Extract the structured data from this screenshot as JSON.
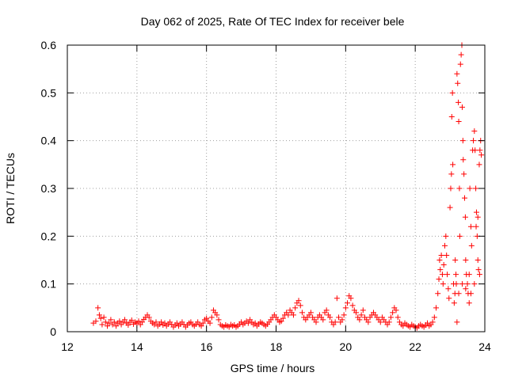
{
  "chart_data": {
    "type": "scatter",
    "title": "Day 062 of 2025, Rate Of TEC Index for receiver bele",
    "xlabel": "GPS time / hours",
    "ylabel": "ROTI / TECUs",
    "xlim": [
      12,
      24
    ],
    "ylim": [
      0,
      0.6
    ],
    "xticks": [
      12,
      14,
      16,
      18,
      20,
      22,
      24
    ],
    "yticks": [
      0,
      0.1,
      0.2,
      0.3,
      0.4,
      0.5,
      0.6
    ],
    "xtick_labels": [
      "12",
      "14",
      "16",
      "18",
      "20",
      "22",
      "24"
    ],
    "ytick_labels": [
      "0",
      "0.1",
      "0.2",
      "0.3",
      "0.4",
      "0.5",
      "0.6"
    ],
    "grid": true,
    "marker": "+",
    "color": "#ff0000",
    "series": [
      {
        "points": [
          [
            12.75,
            0.018
          ],
          [
            12.82,
            0.022
          ],
          [
            12.88,
            0.05
          ],
          [
            12.92,
            0.035
          ],
          [
            12.96,
            0.028
          ],
          [
            13.0,
            0.015
          ],
          [
            13.05,
            0.03
          ],
          [
            13.1,
            0.02
          ],
          [
            13.15,
            0.012
          ],
          [
            13.2,
            0.018
          ],
          [
            13.25,
            0.025
          ],
          [
            13.3,
            0.015
          ],
          [
            13.35,
            0.02
          ],
          [
            13.4,
            0.012
          ],
          [
            13.45,
            0.018
          ],
          [
            13.5,
            0.022
          ],
          [
            13.55,
            0.015
          ],
          [
            13.6,
            0.02
          ],
          [
            13.65,
            0.025
          ],
          [
            13.7,
            0.018
          ],
          [
            13.75,
            0.014
          ],
          [
            13.8,
            0.02
          ],
          [
            13.85,
            0.024
          ],
          [
            13.9,
            0.016
          ],
          [
            13.95,
            0.02
          ],
          [
            14.0,
            0.018
          ],
          [
            14.05,
            0.022
          ],
          [
            14.1,
            0.015
          ],
          [
            14.15,
            0.02
          ],
          [
            14.2,
            0.026
          ],
          [
            14.25,
            0.03
          ],
          [
            14.3,
            0.035
          ],
          [
            14.35,
            0.03
          ],
          [
            14.4,
            0.022
          ],
          [
            14.45,
            0.018
          ],
          [
            14.5,
            0.015
          ],
          [
            14.55,
            0.02
          ],
          [
            14.6,
            0.012
          ],
          [
            14.65,
            0.016
          ],
          [
            14.7,
            0.02
          ],
          [
            14.75,
            0.014
          ],
          [
            14.8,
            0.018
          ],
          [
            14.85,
            0.012
          ],
          [
            14.9,
            0.016
          ],
          [
            14.95,
            0.02
          ],
          [
            15.0,
            0.015
          ],
          [
            15.05,
            0.01
          ],
          [
            15.1,
            0.014
          ],
          [
            15.15,
            0.018
          ],
          [
            15.2,
            0.012
          ],
          [
            15.25,
            0.016
          ],
          [
            15.3,
            0.02
          ],
          [
            15.35,
            0.015
          ],
          [
            15.4,
            0.01
          ],
          [
            15.45,
            0.014
          ],
          [
            15.5,
            0.018
          ],
          [
            15.55,
            0.02
          ],
          [
            15.6,
            0.015
          ],
          [
            15.65,
            0.012
          ],
          [
            15.7,
            0.016
          ],
          [
            15.75,
            0.02
          ],
          [
            15.8,
            0.015
          ],
          [
            15.85,
            0.012
          ],
          [
            15.9,
            0.018
          ],
          [
            15.95,
            0.025
          ],
          [
            16.0,
            0.028
          ],
          [
            16.05,
            0.022
          ],
          [
            16.1,
            0.018
          ],
          [
            16.15,
            0.03
          ],
          [
            16.2,
            0.045
          ],
          [
            16.25,
            0.04
          ],
          [
            16.3,
            0.035
          ],
          [
            16.35,
            0.025
          ],
          [
            16.4,
            0.015
          ],
          [
            16.45,
            0.012
          ],
          [
            16.5,
            0.01
          ],
          [
            16.55,
            0.014
          ],
          [
            16.6,
            0.012
          ],
          [
            16.65,
            0.01
          ],
          [
            16.7,
            0.015
          ],
          [
            16.75,
            0.012
          ],
          [
            16.8,
            0.014
          ],
          [
            16.85,
            0.01
          ],
          [
            16.9,
            0.012
          ],
          [
            16.95,
            0.016
          ],
          [
            17.0,
            0.02
          ],
          [
            17.05,
            0.015
          ],
          [
            17.1,
            0.018
          ],
          [
            17.15,
            0.022
          ],
          [
            17.2,
            0.018
          ],
          [
            17.25,
            0.025
          ],
          [
            17.3,
            0.02
          ],
          [
            17.35,
            0.015
          ],
          [
            17.4,
            0.018
          ],
          [
            17.45,
            0.012
          ],
          [
            17.5,
            0.016
          ],
          [
            17.55,
            0.02
          ],
          [
            17.6,
            0.018
          ],
          [
            17.65,
            0.015
          ],
          [
            17.7,
            0.012
          ],
          [
            17.75,
            0.016
          ],
          [
            17.8,
            0.02
          ],
          [
            17.85,
            0.025
          ],
          [
            17.9,
            0.03
          ],
          [
            17.95,
            0.035
          ],
          [
            18.0,
            0.03
          ],
          [
            18.05,
            0.025
          ],
          [
            18.1,
            0.02
          ],
          [
            18.15,
            0.022
          ],
          [
            18.2,
            0.028
          ],
          [
            18.25,
            0.035
          ],
          [
            18.3,
            0.04
          ],
          [
            18.35,
            0.035
          ],
          [
            18.4,
            0.045
          ],
          [
            18.45,
            0.04
          ],
          [
            18.5,
            0.035
          ],
          [
            18.55,
            0.05
          ],
          [
            18.6,
            0.06
          ],
          [
            18.65,
            0.065
          ],
          [
            18.7,
            0.055
          ],
          [
            18.75,
            0.04
          ],
          [
            18.8,
            0.03
          ],
          [
            18.85,
            0.025
          ],
          [
            18.9,
            0.03
          ],
          [
            18.95,
            0.035
          ],
          [
            19.0,
            0.04
          ],
          [
            19.05,
            0.03
          ],
          [
            19.1,
            0.025
          ],
          [
            19.15,
            0.02
          ],
          [
            19.2,
            0.03
          ],
          [
            19.25,
            0.035
          ],
          [
            19.3,
            0.03
          ],
          [
            19.35,
            0.025
          ],
          [
            19.4,
            0.04
          ],
          [
            19.45,
            0.045
          ],
          [
            19.5,
            0.035
          ],
          [
            19.55,
            0.03
          ],
          [
            19.6,
            0.02
          ],
          [
            19.65,
            0.015
          ],
          [
            19.7,
            0.02
          ],
          [
            19.75,
            0.07
          ],
          [
            19.8,
            0.03
          ],
          [
            19.85,
            0.02
          ],
          [
            19.9,
            0.025
          ],
          [
            19.95,
            0.035
          ],
          [
            20.0,
            0.05
          ],
          [
            20.05,
            0.06
          ],
          [
            20.1,
            0.075
          ],
          [
            20.15,
            0.07
          ],
          [
            20.2,
            0.055
          ],
          [
            20.25,
            0.045
          ],
          [
            20.3,
            0.04
          ],
          [
            20.35,
            0.03
          ],
          [
            20.4,
            0.025
          ],
          [
            20.45,
            0.035
          ],
          [
            20.5,
            0.045
          ],
          [
            20.55,
            0.03
          ],
          [
            20.6,
            0.025
          ],
          [
            20.65,
            0.02
          ],
          [
            20.7,
            0.03
          ],
          [
            20.75,
            0.035
          ],
          [
            20.8,
            0.04
          ],
          [
            20.85,
            0.035
          ],
          [
            20.9,
            0.03
          ],
          [
            20.95,
            0.025
          ],
          [
            21.0,
            0.02
          ],
          [
            21.05,
            0.03
          ],
          [
            21.1,
            0.025
          ],
          [
            21.15,
            0.02
          ],
          [
            21.2,
            0.015
          ],
          [
            21.25,
            0.02
          ],
          [
            21.3,
            0.03
          ],
          [
            21.35,
            0.04
          ],
          [
            21.4,
            0.05
          ],
          [
            21.45,
            0.045
          ],
          [
            21.5,
            0.03
          ],
          [
            21.55,
            0.02
          ],
          [
            21.6,
            0.015
          ],
          [
            21.65,
            0.012
          ],
          [
            21.7,
            0.018
          ],
          [
            21.75,
            0.015
          ],
          [
            21.8,
            0.012
          ],
          [
            21.85,
            0.01
          ],
          [
            21.9,
            0.015
          ],
          [
            21.95,
            0.012
          ],
          [
            22.0,
            0.01
          ],
          [
            22.05,
            0.008
          ],
          [
            22.1,
            0.012
          ],
          [
            22.15,
            0.015
          ],
          [
            22.2,
            0.012
          ],
          [
            22.25,
            0.01
          ],
          [
            22.3,
            0.014
          ],
          [
            22.35,
            0.018
          ],
          [
            22.4,
            0.012
          ],
          [
            22.45,
            0.015
          ],
          [
            22.5,
            0.02
          ],
          [
            22.55,
            0.03
          ],
          [
            22.6,
            0.05
          ],
          [
            22.65,
            0.08
          ],
          [
            22.68,
            0.11
          ],
          [
            22.7,
            0.15
          ],
          [
            22.72,
            0.13
          ],
          [
            22.75,
            0.16
          ],
          [
            22.78,
            0.12
          ],
          [
            22.8,
            0.1
          ],
          [
            22.82,
            0.14
          ],
          [
            22.85,
            0.18
          ],
          [
            22.88,
            0.2
          ],
          [
            22.9,
            0.16
          ],
          [
            22.92,
            0.12
          ],
          [
            22.95,
            0.09
          ],
          [
            22.97,
            0.07
          ],
          [
            23.0,
            0.26
          ],
          [
            23.02,
            0.3
          ],
          [
            23.04,
            0.33
          ],
          [
            23.05,
            0.45
          ],
          [
            23.07,
            0.5
          ],
          [
            23.08,
            0.35
          ],
          [
            23.1,
            0.1
          ],
          [
            23.12,
            0.06
          ],
          [
            23.14,
            0.08
          ],
          [
            23.15,
            0.15
          ],
          [
            23.17,
            0.12
          ],
          [
            23.18,
            0.1
          ],
          [
            23.2,
            0.54
          ],
          [
            23.22,
            0.52
          ],
          [
            23.24,
            0.48
          ],
          [
            23.25,
            0.44
          ],
          [
            23.27,
            0.3
          ],
          [
            23.28,
            0.2
          ],
          [
            23.3,
            0.56
          ],
          [
            23.32,
            0.58
          ],
          [
            23.34,
            0.6
          ],
          [
            23.35,
            0.47
          ],
          [
            23.37,
            0.4
          ],
          [
            23.38,
            0.36
          ],
          [
            23.4,
            0.33
          ],
          [
            23.42,
            0.28
          ],
          [
            23.44,
            0.24
          ],
          [
            23.45,
            0.15
          ],
          [
            23.47,
            0.12
          ],
          [
            23.5,
            0.1
          ],
          [
            23.52,
            0.08
          ],
          [
            23.55,
            0.06
          ],
          [
            23.57,
            0.3
          ],
          [
            23.6,
            0.22
          ],
          [
            23.62,
            0.18
          ],
          [
            23.65,
            0.38
          ],
          [
            23.67,
            0.4
          ],
          [
            23.7,
            0.42
          ],
          [
            23.72,
            0.38
          ],
          [
            23.74,
            0.3
          ],
          [
            23.76,
            0.25
          ],
          [
            23.78,
            0.2
          ],
          [
            23.8,
            0.24
          ],
          [
            23.82,
            0.13
          ],
          [
            23.84,
            0.35
          ],
          [
            23.86,
            0.38
          ],
          [
            23.88,
            0.4
          ],
          [
            23.9,
            0.37
          ],
          [
            23.85,
            0.12
          ],
          [
            23.8,
            0.15
          ],
          [
            23.75,
            0.22
          ],
          [
            23.7,
            0.1
          ],
          [
            23.6,
            0.08
          ],
          [
            23.55,
            0.12
          ],
          [
            23.45,
            0.09
          ],
          [
            23.35,
            0.1
          ],
          [
            23.25,
            0.08
          ],
          [
            23.2,
            0.02
          ]
        ]
      }
    ]
  }
}
